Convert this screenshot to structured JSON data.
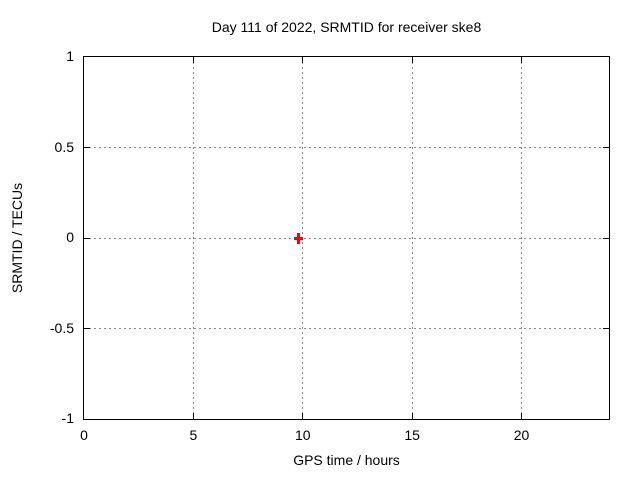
{
  "chart_data": {
    "type": "scatter",
    "title": "Day 111 of 2022, SRMTID for receiver ske8",
    "xlabel": "GPS time / hours",
    "ylabel": "SRMTID / TECUs",
    "xlim": [
      0,
      24
    ],
    "ylim": [
      -1,
      1
    ],
    "x_ticks": [
      0,
      5,
      10,
      15,
      20
    ],
    "y_ticks": [
      -1,
      -0.5,
      0,
      0.5,
      1
    ],
    "grid": true,
    "legend_position": "none",
    "colors": {
      "background": "#ffffff",
      "axis": "#000000",
      "grid": "#8a8a8a",
      "text": "#000000",
      "marker": "#ff0000"
    },
    "series": [
      {
        "name": "SRMTID",
        "marker": "plus",
        "color": "#ff0000",
        "points": [
          {
            "x": 9.8,
            "y": 0
          }
        ]
      }
    ]
  }
}
